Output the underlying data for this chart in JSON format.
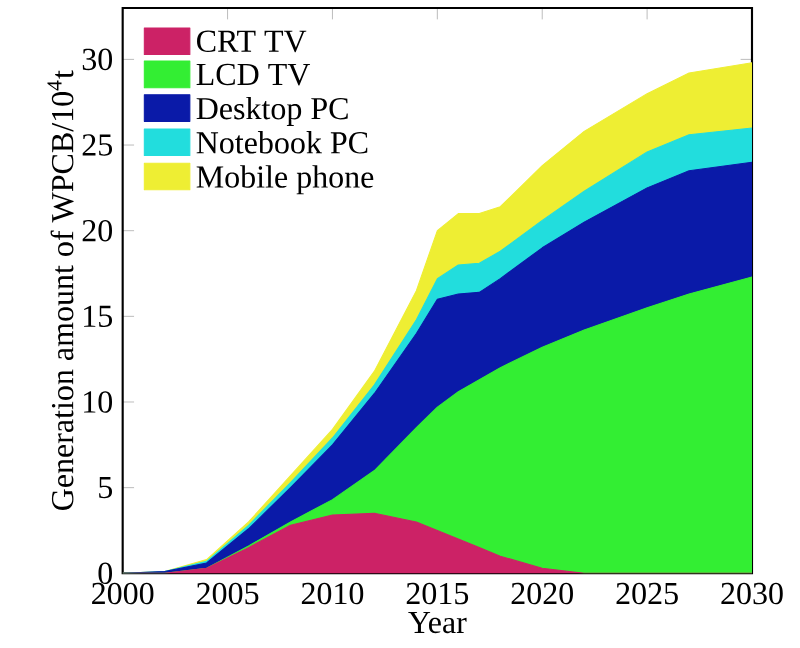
{
  "chart_data": {
    "type": "area",
    "stacked": true,
    "xlabel": "Year",
    "ylabel": "Generation amount of WPCB/10$^{4}$t",
    "x": [
      2000,
      2002,
      2004,
      2006,
      2008,
      2010,
      2012,
      2014,
      2015,
      2016,
      2017,
      2018,
      2020,
      2022,
      2025,
      2027,
      2030
    ],
    "xlim": [
      2000,
      2030
    ],
    "xticks": [
      2000,
      2005,
      2010,
      2015,
      2020,
      2025,
      2030
    ],
    "ylim": [
      0,
      33
    ],
    "yticks": [
      0,
      5,
      10,
      15,
      20,
      25,
      30
    ],
    "legend": "top left",
    "series": [
      {
        "name": "CRT TV",
        "color": "#cc2266",
        "values": [
          0,
          0,
          0.3,
          1.5,
          2.8,
          3.4,
          3.5,
          3.0,
          2.5,
          2.0,
          1.5,
          1.0,
          0.3,
          0,
          0,
          0,
          0
        ]
      },
      {
        "name": "LCD TV",
        "color": "#33ee33",
        "values": [
          0,
          0,
          0,
          0.1,
          0.2,
          0.9,
          2.5,
          5.5,
          7.2,
          8.6,
          9.8,
          11.0,
          12.9,
          14.2,
          15.5,
          16.3,
          17.3
        ]
      },
      {
        "name": "Desktop PC",
        "color": "#0a1aa8",
        "values": [
          0,
          0.1,
          0.3,
          1.0,
          2.0,
          3.2,
          4.5,
          5.5,
          6.3,
          5.7,
          5.1,
          5.2,
          5.8,
          6.3,
          7.0,
          7.2,
          6.7
        ]
      },
      {
        "name": "Notebook PC",
        "color": "#22dddd",
        "values": [
          0,
          0,
          0.1,
          0.2,
          0.3,
          0.4,
          0.5,
          0.8,
          1.2,
          1.7,
          1.7,
          1.6,
          1.6,
          1.8,
          2.1,
          2.1,
          2.0
        ]
      },
      {
        "name": "Mobile phone",
        "color": "#eeee33",
        "values": [
          0,
          0,
          0.1,
          0.2,
          0.4,
          0.5,
          0.8,
          1.7,
          2.8,
          3.0,
          2.9,
          2.6,
          3.2,
          3.5,
          3.4,
          3.6,
          3.8
        ]
      }
    ]
  }
}
